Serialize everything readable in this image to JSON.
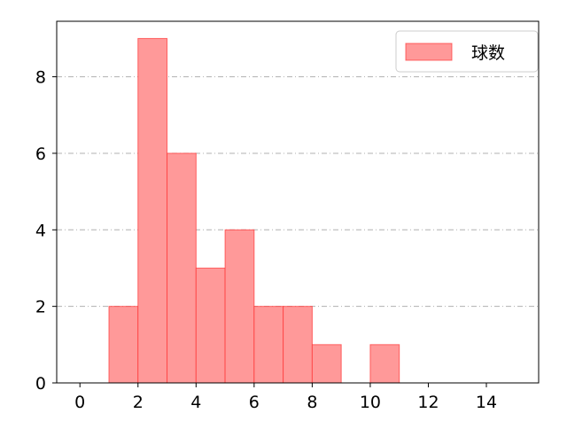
{
  "chart_data": {
    "type": "bar",
    "subtype": "histogram",
    "bin_edges": [
      1,
      2,
      3,
      4,
      5,
      6,
      7,
      8,
      9,
      10,
      11
    ],
    "values": [
      2,
      9,
      6,
      3,
      4,
      2,
      2,
      1,
      0,
      1
    ],
    "series": [
      {
        "name": "球数",
        "values": [
          2,
          9,
          6,
          3,
          4,
          2,
          2,
          1,
          0,
          1
        ]
      }
    ],
    "title": "",
    "xlabel": "",
    "ylabel": "",
    "xlim": [
      -0.8,
      15.8
    ],
    "ylim": [
      0,
      9.45
    ],
    "xticks": [
      0,
      2,
      4,
      6,
      8,
      10,
      12,
      14
    ],
    "yticks": [
      0,
      2,
      4,
      6,
      8
    ],
    "grid": {
      "x": false,
      "y": true,
      "style": "dash-dot"
    },
    "legend": {
      "position": "top-right",
      "entries": [
        "球数"
      ]
    },
    "colors": {
      "bar_fill": "#ff9999",
      "bar_edge": "#ff3333",
      "grid": "#b0b0b0"
    }
  }
}
